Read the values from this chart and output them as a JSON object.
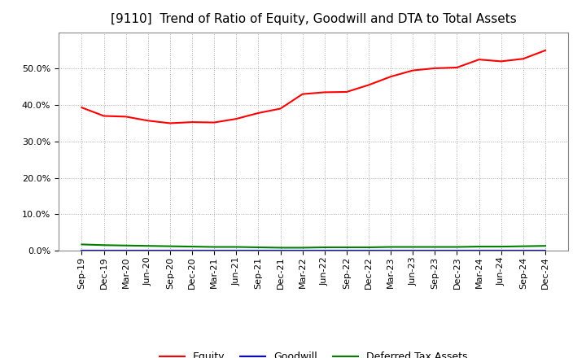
{
  "title": "[9110]  Trend of Ratio of Equity, Goodwill and DTA to Total Assets",
  "x_labels": [
    "Sep-19",
    "Dec-19",
    "Mar-20",
    "Jun-20",
    "Sep-20",
    "Dec-20",
    "Mar-21",
    "Jun-21",
    "Sep-21",
    "Dec-21",
    "Mar-22",
    "Jun-22",
    "Sep-22",
    "Dec-22",
    "Mar-23",
    "Jun-23",
    "Sep-23",
    "Dec-23",
    "Mar-24",
    "Jun-24",
    "Sep-24",
    "Dec-24"
  ],
  "equity": [
    0.393,
    0.37,
    0.368,
    0.357,
    0.35,
    0.353,
    0.352,
    0.362,
    0.378,
    0.39,
    0.43,
    0.435,
    0.436,
    0.455,
    0.478,
    0.495,
    0.501,
    0.503,
    0.525,
    0.52,
    0.527,
    0.55
  ],
  "goodwill": [
    0.0,
    0.0,
    0.0,
    0.0,
    0.0,
    0.0,
    0.0,
    0.0,
    0.0,
    0.0,
    0.0,
    0.0,
    0.0,
    0.0,
    0.0,
    0.0,
    0.0,
    0.0,
    0.0,
    0.0,
    0.0,
    0.0
  ],
  "dta": [
    0.017,
    0.015,
    0.014,
    0.013,
    0.012,
    0.011,
    0.01,
    0.01,
    0.009,
    0.008,
    0.008,
    0.009,
    0.009,
    0.009,
    0.01,
    0.01,
    0.01,
    0.01,
    0.011,
    0.011,
    0.012,
    0.013
  ],
  "equity_color": "#ff0000",
  "goodwill_color": "#0000ff",
  "dta_color": "#008000",
  "background_color": "#ffffff",
  "plot_bg_color": "#ffffff",
  "grid_color": "#aaaaaa",
  "ylim": [
    0.0,
    0.6
  ],
  "yticks": [
    0.0,
    0.1,
    0.2,
    0.3,
    0.4,
    0.5
  ],
  "legend_labels": [
    "Equity",
    "Goodwill",
    "Deferred Tax Assets"
  ],
  "title_fontsize": 11,
  "tick_fontsize": 8,
  "legend_fontsize": 9
}
